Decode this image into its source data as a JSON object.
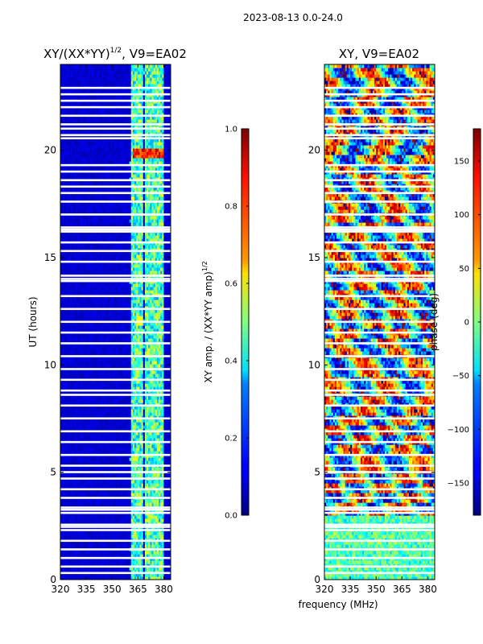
{
  "chart_data": [
    {
      "type": "heatmap",
      "figure_title": "2023-08-13 0.0-24.0",
      "title": "XY/(XX*YY)",
      "title_superscript": "1/2",
      "title_suffix": ", V9=EA02",
      "xlabel": "",
      "ylabel": "UT (hours)",
      "xlim": [
        320,
        384
      ],
      "ylim": [
        0,
        24
      ],
      "xticks": [
        "320",
        "335",
        "350",
        "365",
        "380"
      ],
      "yticks": [
        "0",
        "5",
        "10",
        "15",
        "20"
      ],
      "colormap": "jet",
      "colorbar": {
        "label": "XY amp. / (XX*YY amp)",
        "label_superscript": "1/2",
        "range": [
          0.0,
          1.0
        ],
        "ticks": [
          "0.0",
          "0.2",
          "0.4",
          "0.6",
          "0.8",
          "1.0"
        ]
      },
      "description_values": {
        "background_level": 0.05,
        "band_level": 0.45,
        "band_centers_mhz": [
          363,
          366.5,
          371,
          374,
          378
        ],
        "band_width_mhz": 2.0,
        "flagged_hours": [
          0.3,
          0.6,
          1.0,
          1.4,
          1.8,
          2.3,
          2.45,
          2.55,
          3.1,
          3.25,
          3.35,
          3.8,
          4.2,
          4.7,
          5.0,
          5.3,
          5.8,
          6.4,
          6.9,
          7.5,
          8.1,
          8.6,
          8.8,
          9.3,
          9.8,
          10.4,
          11.0,
          11.5,
          12.0,
          12.6,
          13.2,
          13.9,
          14.0,
          14.15,
          14.8,
          15.3,
          15.7,
          16.2,
          16.3,
          16.4,
          17.0,
          17.6,
          18.0,
          18.3,
          18.6,
          19.0,
          19.3,
          20.55,
          20.7,
          21.0,
          21.2,
          21.6,
          22.0,
          22.3,
          22.6,
          22.9
        ]
      }
    },
    {
      "type": "heatmap",
      "title": "XY, V9=EA02",
      "xlabel": "frequency (MHz)",
      "ylabel": "",
      "xlim": [
        320,
        384
      ],
      "ylim": [
        0,
        24
      ],
      "xticks": [
        "320",
        "335",
        "350",
        "365",
        "380"
      ],
      "yticks": [
        "0",
        "5",
        "10",
        "15",
        "20"
      ],
      "colormap": "jet",
      "colorbar": {
        "label": "phase (deg)",
        "range": [
          -180,
          180
        ],
        "ticks": [
          "−150",
          "−100",
          "−50",
          "0",
          "50",
          "100",
          "150"
        ]
      },
      "description_values": {
        "flagged_hours": [
          0.3,
          0.6,
          1.0,
          1.4,
          1.8,
          2.3,
          2.45,
          2.55,
          3.1,
          3.25,
          3.35,
          3.8,
          4.2,
          4.7,
          5.0,
          5.3,
          5.8,
          6.4,
          6.9,
          7.5,
          8.1,
          8.6,
          8.8,
          9.3,
          9.8,
          10.4,
          11.0,
          11.5,
          12.0,
          12.6,
          13.2,
          13.9,
          14.0,
          14.15,
          14.8,
          15.3,
          15.7,
          16.2,
          16.3,
          16.4,
          17.0,
          17.6,
          18.0,
          18.3,
          18.6,
          19.0,
          19.3,
          20.55,
          20.7,
          21.0,
          21.2,
          21.6,
          22.0,
          22.3,
          22.6,
          22.9
        ]
      }
    }
  ]
}
